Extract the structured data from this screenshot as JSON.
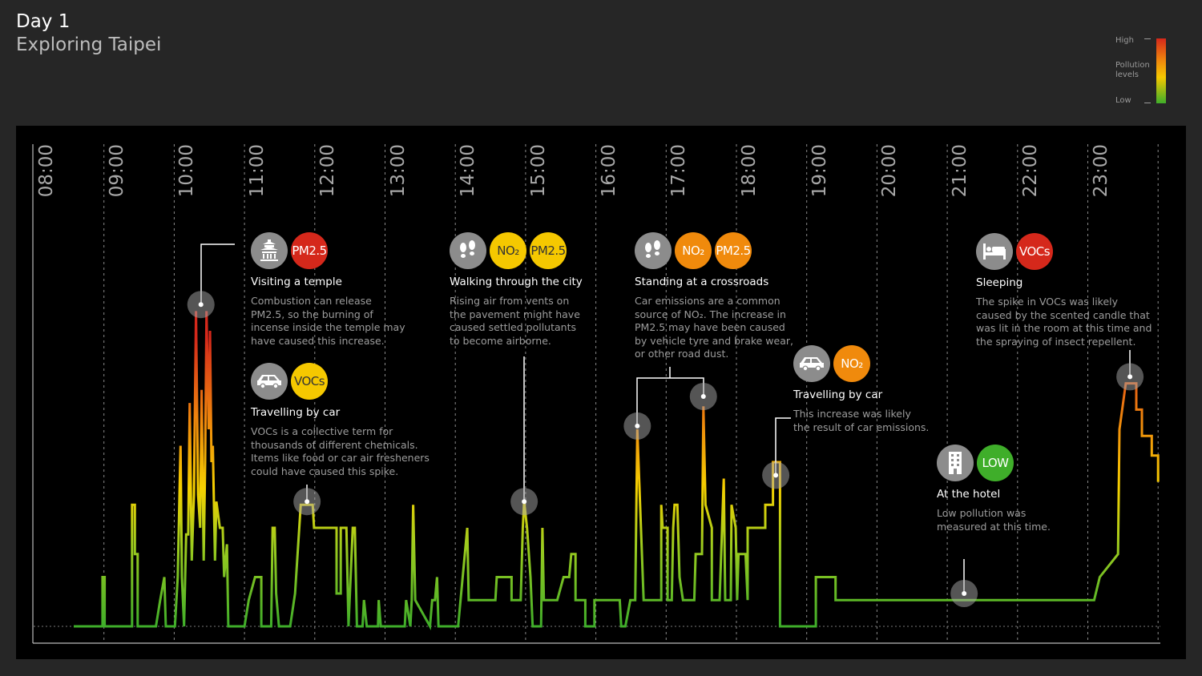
{
  "header": {
    "title": "Day 1",
    "subtitle": "Exploring Taipei"
  },
  "legend": {
    "high": "High",
    "label": "Pollution levels",
    "low": "Low"
  },
  "colors": {
    "background": "#262626",
    "panel": "#000000",
    "green": "#3fae2a",
    "yellow": "#f5c800",
    "orange": "#f08a0c",
    "red": "#d5281b",
    "icon_grey": "#8c8c8c"
  },
  "chart_data": {
    "type": "line",
    "title": "",
    "xlabel": "",
    "ylabel": "",
    "x_unit": "hour of day",
    "y_scale": "relative pollution level (Low to High)",
    "xlim": [
      8,
      24
    ],
    "ylim": [
      0,
      100
    ],
    "grid": "vertical dashed lines at each hour",
    "x_ticks": [
      "08:00",
      "09:00",
      "10:00",
      "11:00",
      "12:00",
      "13:00",
      "14:00",
      "15:00",
      "16:00",
      "17:00",
      "18:00",
      "19:00",
      "20:00",
      "21:00",
      "22:00",
      "23:00"
    ],
    "series": [
      {
        "points": [
          [
            8.57,
            0
          ],
          [
            8.98,
            0
          ],
          [
            8.98,
            15
          ],
          [
            9.01,
            15
          ],
          [
            9.01,
            0
          ],
          [
            9.4,
            0
          ],
          [
            9.4,
            37
          ],
          [
            9.44,
            37
          ],
          [
            9.44,
            22
          ],
          [
            9.48,
            22
          ],
          [
            9.48,
            0
          ],
          [
            9.74,
            0
          ],
          [
            9.8,
            8
          ],
          [
            9.86,
            15
          ],
          [
            9.88,
            0
          ],
          [
            10.01,
            0
          ],
          [
            10.05,
            15
          ],
          [
            10.09,
            55
          ],
          [
            10.11,
            15
          ],
          [
            10.14,
            0
          ],
          [
            10.17,
            28
          ],
          [
            10.2,
            28
          ],
          [
            10.22,
            68
          ],
          [
            10.25,
            20
          ],
          [
            10.28,
            40
          ],
          [
            10.31,
            96
          ],
          [
            10.34,
            40
          ],
          [
            10.37,
            30
          ],
          [
            10.39,
            72
          ],
          [
            10.42,
            20
          ],
          [
            10.44,
            50
          ],
          [
            10.46,
            96
          ],
          [
            10.49,
            60
          ],
          [
            10.51,
            90
          ],
          [
            10.53,
            50
          ],
          [
            10.55,
            55
          ],
          [
            10.58,
            20
          ],
          [
            10.6,
            38
          ],
          [
            10.65,
            30
          ],
          [
            10.69,
            30
          ],
          [
            10.71,
            15
          ],
          [
            10.75,
            25
          ],
          [
            10.77,
            0
          ],
          [
            11.0,
            0
          ],
          [
            11.06,
            8
          ],
          [
            11.15,
            15
          ],
          [
            11.24,
            15
          ],
          [
            11.24,
            0
          ],
          [
            11.38,
            0
          ],
          [
            11.4,
            30
          ],
          [
            11.43,
            30
          ],
          [
            11.45,
            10
          ],
          [
            11.49,
            0
          ],
          [
            11.65,
            0
          ],
          [
            11.72,
            10
          ],
          [
            11.8,
            37
          ],
          [
            11.97,
            37
          ],
          [
            11.99,
            30
          ],
          [
            12.31,
            30
          ],
          [
            12.31,
            10
          ],
          [
            12.37,
            10
          ],
          [
            12.37,
            30
          ],
          [
            12.45,
            30
          ],
          [
            12.48,
            0
          ],
          [
            12.54,
            30
          ],
          [
            12.57,
            30
          ],
          [
            12.6,
            0
          ],
          [
            12.68,
            0
          ],
          [
            12.7,
            8
          ],
          [
            12.74,
            0
          ],
          [
            12.9,
            0
          ],
          [
            12.91,
            8
          ],
          [
            12.94,
            0
          ],
          [
            13.28,
            0
          ],
          [
            13.3,
            8
          ],
          [
            13.36,
            0
          ],
          [
            13.38,
            8
          ],
          [
            13.4,
            37
          ],
          [
            13.43,
            8
          ],
          [
            13.64,
            0
          ],
          [
            13.67,
            8
          ],
          [
            13.71,
            8
          ],
          [
            13.74,
            15
          ],
          [
            13.76,
            0
          ],
          [
            14.04,
            0
          ],
          [
            14.17,
            30
          ],
          [
            14.19,
            8
          ],
          [
            14.57,
            8
          ],
          [
            14.59,
            15
          ],
          [
            14.8,
            15
          ],
          [
            14.8,
            8
          ],
          [
            14.93,
            8
          ],
          [
            14.96,
            30
          ],
          [
            14.98,
            38
          ],
          [
            15.02,
            30
          ],
          [
            15.07,
            15
          ],
          [
            15.1,
            0
          ],
          [
            15.22,
            0
          ],
          [
            15.24,
            30
          ],
          [
            15.26,
            8
          ],
          [
            15.45,
            8
          ],
          [
            15.54,
            15
          ],
          [
            15.62,
            15
          ],
          [
            15.65,
            22
          ],
          [
            15.71,
            22
          ],
          [
            15.71,
            8
          ],
          [
            15.85,
            8
          ],
          [
            15.85,
            0
          ],
          [
            15.98,
            0
          ],
          [
            15.98,
            8
          ],
          [
            16.34,
            8
          ],
          [
            16.36,
            0
          ],
          [
            16.42,
            0
          ],
          [
            16.49,
            8
          ],
          [
            16.56,
            8
          ],
          [
            16.59,
            60
          ],
          [
            16.68,
            8
          ],
          [
            16.93,
            8
          ],
          [
            16.93,
            37
          ],
          [
            16.95,
            30
          ],
          [
            17.02,
            30
          ],
          [
            17.02,
            8
          ],
          [
            17.08,
            8
          ],
          [
            17.1,
            30
          ],
          [
            17.12,
            37
          ],
          [
            17.16,
            37
          ],
          [
            17.19,
            15
          ],
          [
            17.24,
            8
          ],
          [
            17.4,
            8
          ],
          [
            17.42,
            22
          ],
          [
            17.51,
            22
          ],
          [
            17.53,
            67
          ],
          [
            17.56,
            37
          ],
          [
            17.65,
            30
          ],
          [
            17.65,
            8
          ],
          [
            17.76,
            8
          ],
          [
            17.82,
            45
          ],
          [
            17.84,
            8
          ],
          [
            17.92,
            8
          ],
          [
            17.93,
            37
          ],
          [
            17.99,
            30
          ],
          [
            18.01,
            8
          ],
          [
            18.03,
            22
          ],
          [
            18.13,
            22
          ],
          [
            18.16,
            8
          ],
          [
            18.16,
            30
          ],
          [
            18.41,
            30
          ],
          [
            18.41,
            37
          ],
          [
            18.52,
            37
          ],
          [
            18.52,
            50
          ],
          [
            18.62,
            50
          ],
          [
            18.62,
            0
          ],
          [
            19.13,
            0
          ],
          [
            19.13,
            15
          ],
          [
            19.41,
            15
          ],
          [
            19.41,
            8
          ],
          [
            23.09,
            8
          ],
          [
            23.17,
            15
          ],
          [
            23.43,
            22
          ],
          [
            23.45,
            60
          ],
          [
            23.54,
            74
          ],
          [
            23.69,
            74
          ],
          [
            23.69,
            66
          ],
          [
            23.77,
            66
          ],
          [
            23.77,
            58
          ],
          [
            23.91,
            58
          ],
          [
            23.91,
            52
          ],
          [
            24.0,
            52
          ],
          [
            24.0,
            44
          ]
        ]
      }
    ],
    "annotations": [
      {
        "title": "Visiting a temple",
        "activity_icon": "temple-icon",
        "pollutants": [
          {
            "label": "PM2.5",
            "color": "#d5281b"
          }
        ],
        "desc": [
          "Combustion can release",
          "PM2.5, so the burning of",
          "incense inside the temple may",
          "have caused this increase."
        ],
        "marker": [
          [
            10.38,
            98
          ]
        ]
      },
      {
        "title": "Travelling by car",
        "activity_icon": "car-icon",
        "pollutants": [
          {
            "label": "VOCs",
            "color": "#f5c800"
          }
        ],
        "desc": [
          "VOCs  is a collective term for",
          "thousands of different chemicals.",
          "Items like food or car air fresheners",
          "could have caused this spike."
        ],
        "marker": [
          [
            11.89,
            38
          ]
        ]
      },
      {
        "title": "Walking through the city",
        "activity_icon": "footprints-icon",
        "pollutants": [
          {
            "label": "NO₂",
            "color": "#f5c800"
          },
          {
            "label": "PM2.5",
            "color": "#f5c800"
          }
        ],
        "desc": [
          "Rising air from vents on",
          "the pavement might have",
          "caused settled pollutants",
          "to become airborne."
        ],
        "marker": [
          [
            14.98,
            38
          ]
        ]
      },
      {
        "title": "Standing at a crossroads",
        "activity_icon": "footprints-icon",
        "pollutants": [
          {
            "label": "NO₂",
            "color": "#f08a0c"
          },
          {
            "label": "PM2.5",
            "color": "#f08a0c"
          }
        ],
        "desc": [
          "Car emissions are a common",
          "source of NO₂. The increase in",
          "PM2.5 may have been caused",
          "by vehicle tyre and brake wear,",
          "or other road dust."
        ],
        "marker": [
          [
            16.59,
            61
          ],
          [
            17.53,
            70
          ]
        ]
      },
      {
        "title": "Travelling by car",
        "activity_icon": "car-icon",
        "pollutants": [
          {
            "label": "NO₂",
            "color": "#f08a0c"
          }
        ],
        "desc": [
          "This increase was likely",
          "the result of car emissions."
        ],
        "marker": [
          [
            18.56,
            46
          ]
        ]
      },
      {
        "title": "At the hotel",
        "activity_icon": "building-icon",
        "pollutants": [
          {
            "label": "LOW",
            "color": "#3fae2a"
          }
        ],
        "desc": [
          "Low pollution was",
          "measured at this time."
        ],
        "marker": [
          [
            21.24,
            10
          ]
        ]
      },
      {
        "title": "Sleeping",
        "activity_icon": "bed-icon",
        "pollutants": [
          {
            "label": "VOCs",
            "color": "#d5281b"
          }
        ],
        "desc": [
          "The spike in VOCs was likely",
          "caused by the scented candle that",
          "was lit in the room at this time and",
          "the spraying of insect repellent."
        ],
        "marker": [
          [
            23.6,
            76
          ]
        ]
      }
    ]
  }
}
